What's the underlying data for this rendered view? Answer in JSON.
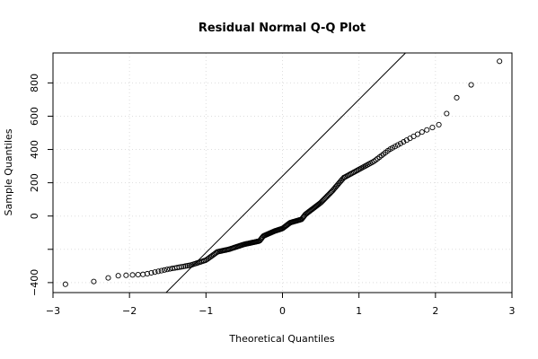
{
  "chart_data": {
    "type": "scatter",
    "title": "Residual Normal Q-Q Plot",
    "xlabel": "Theoretical Quantiles",
    "ylabel": "Sample Quantiles",
    "xlim": [
      -3,
      3
    ],
    "ylim": [
      -460,
      980
    ],
    "x_ticks": [
      -3,
      -2,
      -1,
      0,
      1,
      2,
      3
    ],
    "x_tick_labels": [
      "−3",
      "−2",
      "−1",
      "0",
      "1",
      "2",
      "3"
    ],
    "y_ticks": [
      -400,
      -200,
      0,
      200,
      400,
      600,
      800
    ],
    "y_tick_labels": [
      "−400",
      "",
      "0",
      "200",
      "400",
      "600",
      "800"
    ],
    "grid": true,
    "reference_line": {
      "slope": 460,
      "intercept": 240
    },
    "points_knots": [
      [
        -2.8,
        -410
      ],
      [
        -2.4,
        -390
      ],
      [
        -2.2,
        -360
      ],
      [
        -1.8,
        -350
      ],
      [
        -1.5,
        -320
      ],
      [
        -1.2,
        -295
      ],
      [
        -1.0,
        -265
      ],
      [
        -0.85,
        -215
      ],
      [
        -0.7,
        -200
      ],
      [
        -0.5,
        -170
      ],
      [
        -0.3,
        -150
      ],
      [
        -0.25,
        -120
      ],
      [
        -0.1,
        -90
      ],
      [
        0.0,
        -75
      ],
      [
        0.1,
        -40
      ],
      [
        0.25,
        -20
      ],
      [
        0.3,
        10
      ],
      [
        0.5,
        80
      ],
      [
        0.65,
        150
      ],
      [
        0.8,
        230
      ],
      [
        1.0,
        280
      ],
      [
        1.2,
        330
      ],
      [
        1.4,
        400
      ],
      [
        1.6,
        450
      ],
      [
        1.8,
        500
      ],
      [
        2.0,
        540
      ],
      [
        2.1,
        560
      ],
      [
        2.2,
        680
      ],
      [
        2.4,
        760
      ],
      [
        2.8,
        930
      ]
    ],
    "n_points": 220,
    "series": [
      {
        "name": "",
        "marker": "open-circle",
        "color": "#000000"
      }
    ]
  }
}
